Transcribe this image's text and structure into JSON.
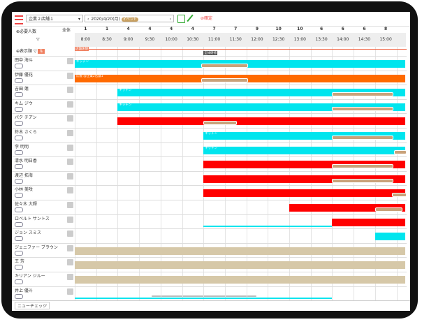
{
  "toolbar": {
    "store": "企業２店舗１",
    "date": "2020/4/20(月)",
    "event": "イベント",
    "confirm": "確定"
  },
  "header": {
    "required": "必要人数",
    "total": "全体",
    "sort": "表示順",
    "counts": [
      "1",
      "1",
      "4",
      "4",
      "4",
      "4",
      "7",
      "7",
      "9",
      "10",
      "10",
      "6",
      "6",
      "6",
      "8"
    ],
    "times": [
      "8:00",
      "8:30",
      "9:00",
      "9:30",
      "10:00",
      "10:30",
      "11:00",
      "11:30",
      "12:00",
      "12:30",
      "13:00",
      "13:30",
      "14:00",
      "14:30",
      "15:00"
    ]
  },
  "top_row": [
    "店舗休憩",
    "全体研修"
  ],
  "staff": [
    "田中 海斗",
    "伊藤 優花",
    "吉田 蓮",
    "キム ジウ",
    "パク チアン",
    "鈴木 さくら",
    "李 明明",
    "清水 明日香",
    "渡辺 拓海",
    "小林 美咲",
    "佐々木 大輝",
    "ロベルト サントス",
    "ジョン スミス",
    "ジェニファー ブラウン",
    "王 芳",
    "キリアン ジルー",
    "井上 優斗"
  ],
  "shift_labels": [
    "キッチン",
    "応援 @企業2店舗1",
    "キッチン",
    "キッチン",
    "キッチン",
    "キッチン"
  ],
  "footer": "ニューチェッジ"
}
